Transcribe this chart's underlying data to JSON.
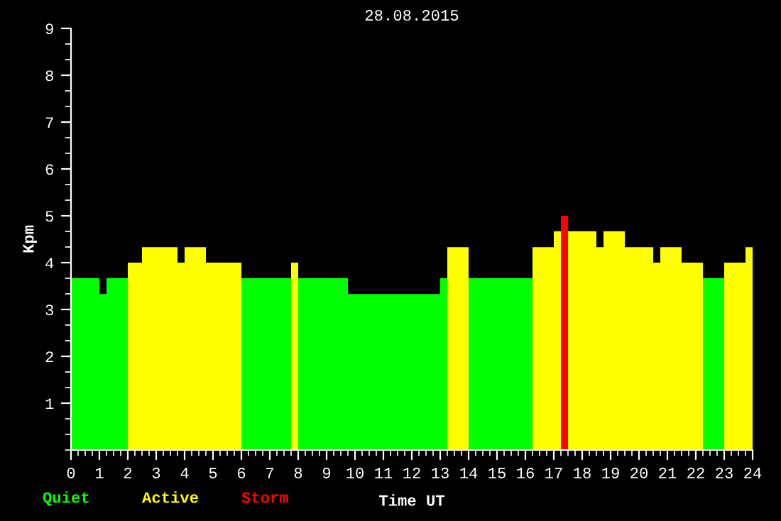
{
  "chart_data": {
    "type": "histogram",
    "title": "28.08.2015",
    "xlabel": "Time UT",
    "ylabel": "Kpm",
    "bins": [
      0,
      1,
      1.25,
      2,
      2.5,
      3.75,
      4,
      4.75,
      6,
      7.75,
      8,
      9.75,
      13,
      13.25,
      14,
      16.25,
      17,
      17.25,
      17.5,
      18.5,
      18.75,
      19.5,
      20.5,
      20.75,
      21.5,
      22.25,
      23,
      23.75,
      24
    ],
    "series": [
      {
        "name": "Quiet",
        "color": "#00ff00",
        "values": [
          3.67,
          3.33,
          3.67,
          null,
          null,
          null,
          null,
          null,
          3.67,
          null,
          3.67,
          3.33,
          3.67,
          null,
          3.67,
          null,
          null,
          null,
          null,
          null,
          null,
          null,
          null,
          null,
          null,
          3.67,
          null,
          null
        ]
      },
      {
        "name": "Active",
        "color": "#ffff00",
        "values": [
          null,
          null,
          null,
          4.0,
          4.33,
          4.0,
          4.33,
          4.0,
          null,
          4.0,
          null,
          null,
          null,
          4.33,
          null,
          4.33,
          4.67,
          null,
          4.67,
          4.33,
          4.67,
          4.33,
          4.0,
          4.33,
          4.0,
          null,
          4.0,
          4.33
        ]
      },
      {
        "name": "Storm",
        "color": "#ff0000",
        "values": [
          null,
          null,
          null,
          null,
          null,
          null,
          null,
          null,
          null,
          null,
          null,
          null,
          null,
          null,
          null,
          null,
          null,
          5.0,
          null,
          null,
          null,
          null,
          null,
          null,
          null,
          null,
          null,
          null
        ]
      }
    ],
    "xlim": [
      0,
      24
    ],
    "xticks": [
      0,
      1,
      2,
      3,
      4,
      5,
      6,
      7,
      8,
      9,
      10,
      11,
      12,
      13,
      14,
      15,
      16,
      17,
      18,
      19,
      20,
      21,
      22,
      23,
      24
    ],
    "ylim": [
      0,
      9
    ],
    "yticks": [
      1,
      2,
      3,
      4,
      5,
      6,
      7,
      8,
      9
    ],
    "grid": false,
    "legend": "bottom left"
  }
}
